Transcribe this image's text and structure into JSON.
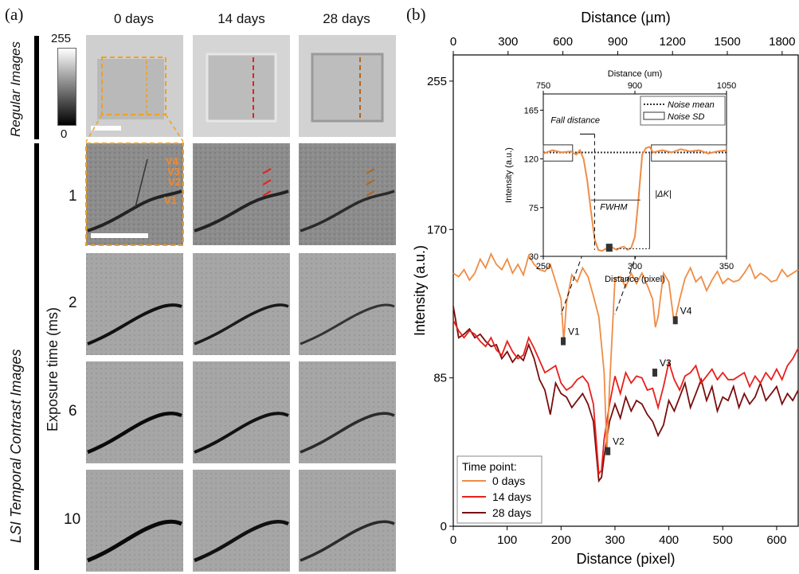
{
  "panel_a": {
    "label": "(a)",
    "columns": [
      "0 days",
      "14 days",
      "28 days"
    ],
    "row_group_regular": "Regular Images",
    "row_group_lsi": "LSI Temporal Contrast Images",
    "exposure_axis_label": "Exposure time (ms)",
    "exposure_rows": [
      "1",
      "2",
      "6",
      "10"
    ],
    "colorbar_max": "255",
    "colorbar_min": "0",
    "vessel_labels": [
      "V4",
      "V3",
      "V2",
      "V1"
    ],
    "colors": {
      "dashed_box": "#f0a020",
      "arrow_14": "#e8201c",
      "arrow_28": "#b5651d",
      "arrow_0": "#f08a30"
    }
  },
  "panel_b": {
    "label": "(b)",
    "top_axis_label": "Distance (µm)",
    "top_ticks": [
      "0",
      "300",
      "600",
      "900",
      "1200",
      "1500",
      "1800"
    ],
    "point_labels": [
      "V1",
      "V2",
      "V3",
      "V4"
    ],
    "inset": {
      "top_axis_label": "Distance (um)",
      "top_ticks": [
        "750",
        "900",
        "1050"
      ],
      "xlabel": "Distance (pixel)",
      "ylabel": "Intensity (a.u.)",
      "x_ticks": [
        "250",
        "300",
        "350"
      ],
      "y_ticks": [
        "30",
        "75",
        "120",
        "165"
      ],
      "fall_distance": "Fall distance",
      "fwhm": "FWHM",
      "delta_k": "|ΔK|",
      "legend_noise_mean": "Noise mean",
      "legend_noise_sd": "Noise SD"
    }
  },
  "chart_data": {
    "type": "line",
    "title": "",
    "xlabel": "Distance (pixel)",
    "ylabel": "Intensity (a.u.)",
    "xlim": [
      0,
      640
    ],
    "ylim": [
      0,
      270
    ],
    "x_ticks": [
      "0",
      "100",
      "200",
      "300",
      "400",
      "500",
      "600"
    ],
    "y_ticks": [
      "0",
      "85",
      "170",
      "255"
    ],
    "legend_title": "Time point:",
    "legend_position": "bottom-left",
    "series": [
      {
        "name": "0 days",
        "color": "#f08c45",
        "x": [
          0,
          10,
          20,
          30,
          40,
          50,
          60,
          70,
          80,
          90,
          100,
          110,
          120,
          130,
          140,
          150,
          160,
          170,
          180,
          190,
          200,
          205,
          210,
          220,
          230,
          240,
          250,
          260,
          270,
          280,
          285,
          290,
          300,
          310,
          320,
          330,
          340,
          350,
          360,
          370,
          375,
          380,
          390,
          400,
          410,
          420,
          430,
          440,
          450,
          460,
          470,
          480,
          490,
          500,
          510,
          520,
          530,
          540,
          550,
          560,
          570,
          580,
          590,
          600,
          610,
          620,
          630,
          640
        ],
        "y": [
          145,
          143,
          147,
          141,
          145,
          153,
          148,
          156,
          150,
          147,
          153,
          145,
          150,
          144,
          155,
          150,
          147,
          146,
          150,
          140,
          130,
          106,
          128,
          144,
          140,
          148,
          143,
          132,
          120,
          88,
          43,
          80,
          142,
          143,
          137,
          145,
          139,
          145,
          138,
          130,
          114,
          120,
          145,
          140,
          116,
          130,
          142,
          148,
          140,
          143,
          135,
          141,
          146,
          139,
          142,
          140,
          141,
          145,
          150,
          142,
          145,
          143,
          140,
          141,
          147,
          143,
          145,
          147
        ]
      },
      {
        "name": "14 days",
        "color": "#e8201c",
        "x": [
          0,
          10,
          20,
          30,
          40,
          50,
          60,
          70,
          80,
          90,
          100,
          110,
          120,
          130,
          140,
          150,
          160,
          170,
          180,
          190,
          200,
          210,
          220,
          230,
          240,
          250,
          260,
          270,
          275,
          280,
          290,
          300,
          310,
          320,
          330,
          340,
          350,
          360,
          370,
          380,
          390,
          400,
          410,
          420,
          430,
          440,
          450,
          460,
          470,
          480,
          490,
          500,
          510,
          520,
          530,
          540,
          550,
          560,
          570,
          580,
          590,
          600,
          610,
          620,
          630,
          640
        ],
        "y": [
          118,
          112,
          108,
          112,
          110,
          106,
          103,
          108,
          101,
          98,
          106,
          100,
          96,
          98,
          108,
          102,
          95,
          88,
          90,
          92,
          82,
          78,
          80,
          84,
          86,
          82,
          70,
          30,
          32,
          50,
          70,
          86,
          76,
          88,
          82,
          86,
          85,
          78,
          79,
          68,
          80,
          94,
          84,
          78,
          86,
          88,
          92,
          82,
          86,
          90,
          84,
          88,
          84,
          84,
          86,
          88,
          80,
          86,
          82,
          88,
          84,
          90,
          84,
          92,
          96,
          102
        ]
      },
      {
        "name": "28 days",
        "color": "#7a0d0d",
        "x": [
          0,
          10,
          20,
          30,
          40,
          50,
          60,
          70,
          80,
          90,
          100,
          110,
          120,
          130,
          140,
          150,
          160,
          170,
          180,
          190,
          200,
          210,
          220,
          230,
          240,
          250,
          260,
          270,
          275,
          280,
          290,
          300,
          310,
          320,
          330,
          340,
          350,
          360,
          370,
          380,
          390,
          400,
          410,
          420,
          430,
          440,
          450,
          460,
          470,
          480,
          490,
          500,
          510,
          520,
          530,
          540,
          550,
          560,
          570,
          580,
          590,
          600,
          610,
          620,
          630,
          640
        ],
        "y": [
          126,
          108,
          110,
          113,
          108,
          110,
          106,
          103,
          104,
          96,
          100,
          94,
          98,
          95,
          104,
          96,
          84,
          78,
          64,
          82,
          76,
          74,
          68,
          72,
          76,
          70,
          60,
          26,
          28,
          40,
          60,
          70,
          62,
          74,
          66,
          72,
          70,
          64,
          60,
          52,
          58,
          72,
          66,
          74,
          82,
          68,
          76,
          84,
          72,
          80,
          66,
          74,
          72,
          80,
          68,
          76,
          70,
          74,
          82,
          72,
          76,
          80,
          70,
          76,
          72,
          78
        ]
      }
    ],
    "annotations": [
      {
        "label": "V1",
        "x": 204,
        "y": 106
      },
      {
        "label": "V2",
        "x": 287,
        "y": 43
      },
      {
        "label": "V3",
        "x": 374,
        "y": 88
      },
      {
        "label": "V4",
        "x": 412,
        "y": 118
      }
    ],
    "inset_chart": {
      "type": "line",
      "xlim": [
        250,
        350
      ],
      "ylim": [
        30,
        180
      ],
      "x": [
        250,
        255,
        260,
        265,
        268,
        270,
        272,
        274,
        276,
        278,
        280,
        282,
        284,
        286,
        288,
        290,
        292,
        294,
        296,
        298,
        300,
        302,
        304,
        306,
        308,
        310,
        315,
        320,
        325,
        330,
        335,
        340,
        345,
        350
      ],
      "y": [
        125,
        128,
        126,
        127,
        124,
        128,
        120,
        100,
        72,
        46,
        36,
        35,
        37,
        38,
        38,
        36,
        38,
        39,
        36,
        38,
        48,
        84,
        124,
        130,
        131,
        126,
        128,
        126,
        129,
        127,
        128,
        125,
        127,
        128
      ],
      "noise_mean": 126
    }
  }
}
